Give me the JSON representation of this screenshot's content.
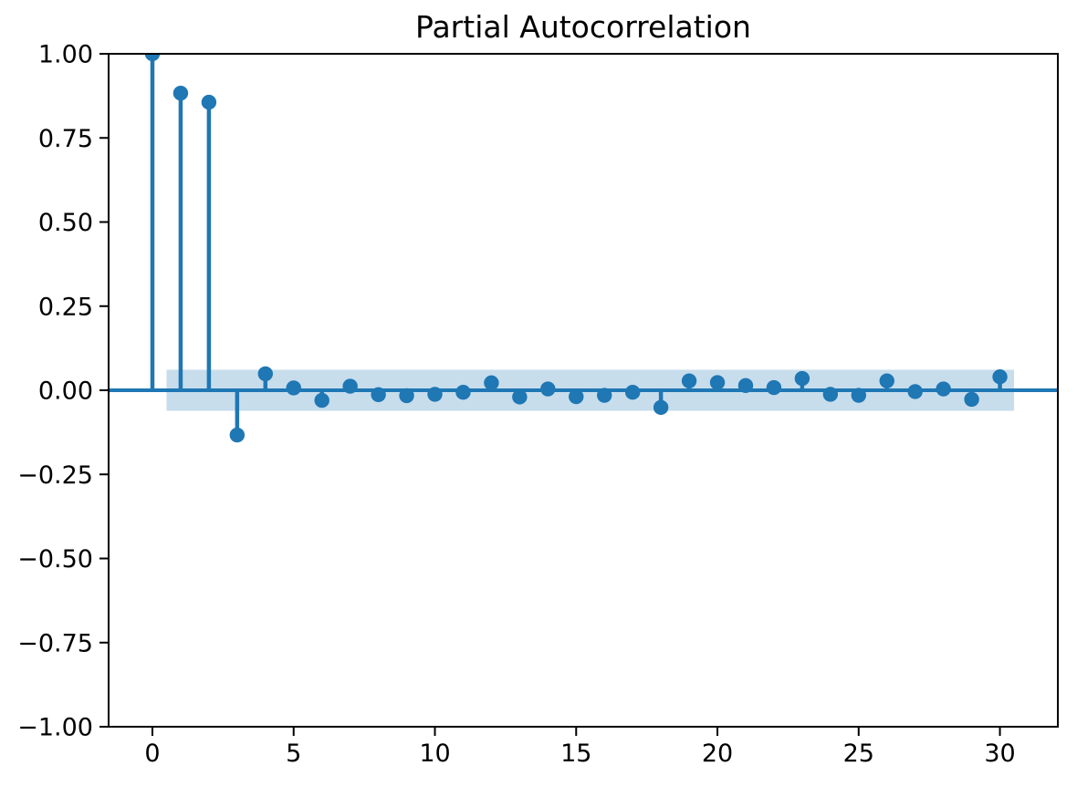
{
  "figure": {
    "background": "#ffffff"
  },
  "chart_data": {
    "type": "stem",
    "title": "Partial Autocorrelation",
    "xlabel": "",
    "ylabel": "",
    "x": [
      0,
      1,
      2,
      3,
      4,
      5,
      6,
      7,
      8,
      9,
      10,
      11,
      12,
      13,
      14,
      15,
      16,
      17,
      18,
      19,
      20,
      21,
      22,
      23,
      24,
      25,
      26,
      27,
      28,
      29,
      30
    ],
    "values": [
      1.0,
      0.883,
      0.856,
      -0.133,
      0.049,
      0.007,
      -0.03,
      0.012,
      -0.013,
      -0.016,
      -0.012,
      -0.006,
      0.022,
      -0.02,
      0.004,
      -0.019,
      -0.015,
      -0.006,
      -0.051,
      0.028,
      0.023,
      0.014,
      0.008,
      0.035,
      -0.012,
      -0.015,
      0.028,
      -0.004,
      0.004,
      -0.027,
      0.04
    ],
    "confidence_band": {
      "upper": 0.061,
      "lower": -0.061,
      "x_start": 0.5,
      "x_end": 30.5
    },
    "xlim": [
      -1.55,
      32.05
    ],
    "ylim": [
      -1.0,
      1.0
    ],
    "xticks": {
      "values": [
        0,
        5,
        10,
        15,
        20,
        25,
        30
      ],
      "labels": [
        "0",
        "5",
        "10",
        "15",
        "20",
        "25",
        "30"
      ]
    },
    "yticks": {
      "values": [
        1.0,
        0.75,
        0.5,
        0.25,
        0.0,
        -0.25,
        -0.5,
        -0.75,
        -1.0
      ],
      "labels": [
        "1.00",
        "0.75",
        "0.50",
        "0.25",
        "0.00",
        "−0.25",
        "−0.50",
        "−0.75",
        "−1.00"
      ]
    },
    "grid": false,
    "legend": "none",
    "colors": {
      "stem": "#1f77b4",
      "marker": "#1f77b4",
      "zero_line": "#1f77b4",
      "band": "#1f77b4",
      "band_opacity": 0.25,
      "axis": "#000000",
      "text": "#000000",
      "background": "#ffffff"
    }
  }
}
